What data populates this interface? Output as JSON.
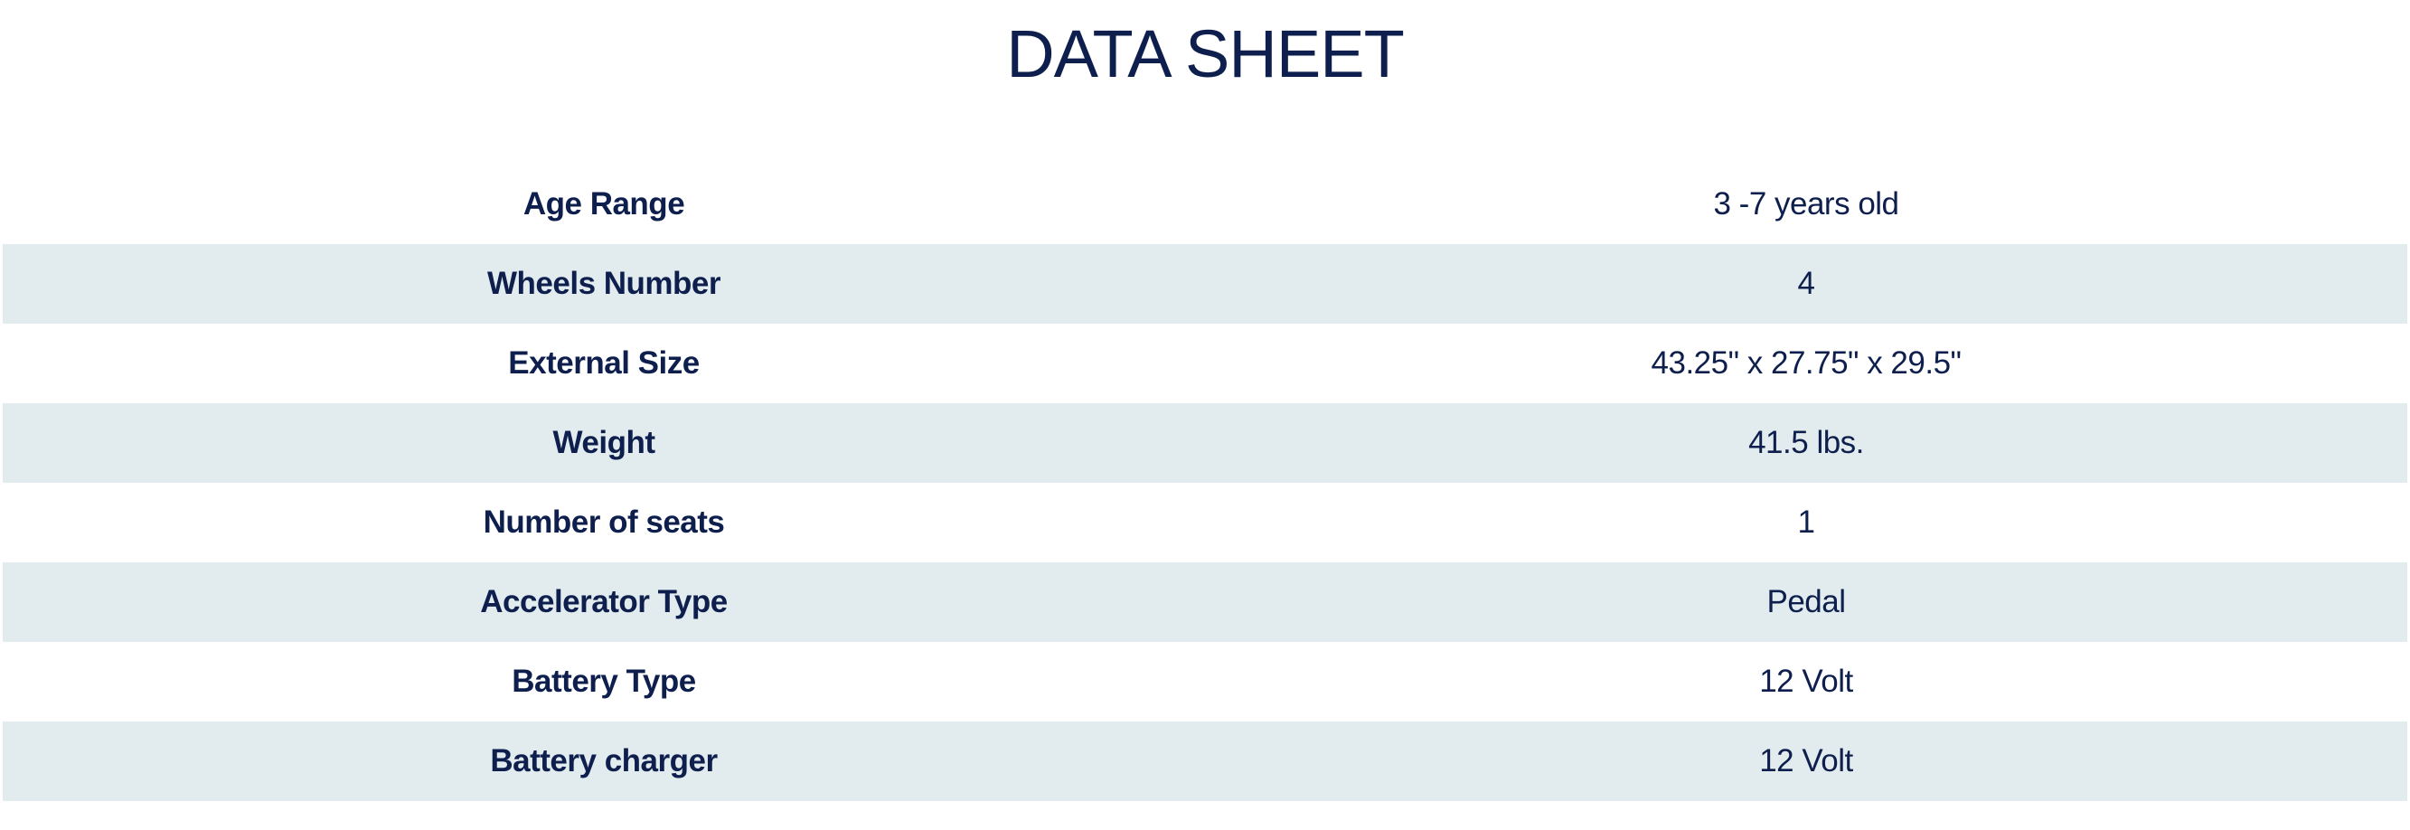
{
  "title": "DATA SHEET",
  "rows": [
    {
      "label": "Age Range",
      "value": "3 -7 years old"
    },
    {
      "label": "Wheels Number",
      "value": "4"
    },
    {
      "label": "External Size",
      "value": "43.25\" x 27.75\" x 29.5\""
    },
    {
      "label": "Weight",
      "value": "41.5 lbs."
    },
    {
      "label": "Number of seats",
      "value": "1"
    },
    {
      "label": "Accelerator Type",
      "value": "Pedal"
    },
    {
      "label": "Battery Type",
      "value": "12 Volt"
    },
    {
      "label": "Battery charger",
      "value": "12 Volt"
    }
  ],
  "colors": {
    "text": "#0e1f4d",
    "stripe": "#e2ebee"
  }
}
